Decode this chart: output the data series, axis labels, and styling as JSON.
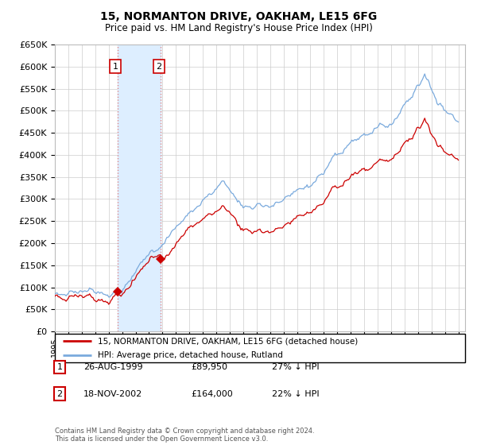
{
  "title": "15, NORMANTON DRIVE, OAKHAM, LE15 6FG",
  "subtitle": "Price paid vs. HM Land Registry's House Price Index (HPI)",
  "legend_line1": "15, NORMANTON DRIVE, OAKHAM, LE15 6FG (detached house)",
  "legend_line2": "HPI: Average price, detached house, Rutland",
  "transaction1_label": "1",
  "transaction1_date": "26-AUG-1999",
  "transaction1_price": "£89,950",
  "transaction1_hpi": "27% ↓ HPI",
  "transaction2_label": "2",
  "transaction2_date": "18-NOV-2002",
  "transaction2_price": "£164,000",
  "transaction2_hpi": "22% ↓ HPI",
  "footer": "Contains HM Land Registry data © Crown copyright and database right 2024.\nThis data is licensed under the Open Government Licence v3.0.",
  "red_color": "#cc0000",
  "blue_color": "#7aaadd",
  "shade_color": "#ddeeff",
  "grid_color": "#cccccc",
  "sale1_date_num": 1999.646,
  "sale1_price": 89950,
  "sale2_date_num": 2002.88,
  "sale2_price": 164000,
  "ylim": [
    0,
    650000
  ],
  "xlim": [
    1995.0,
    2025.5
  ]
}
